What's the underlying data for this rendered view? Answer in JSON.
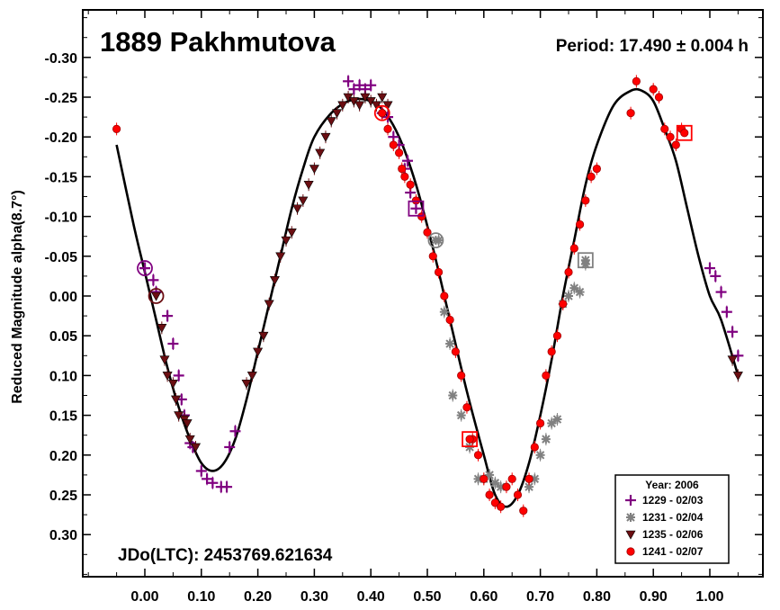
{
  "chart_data": {
    "type": "scatter",
    "title": "1889 Pakhmutova",
    "period_text": "Period: 17.490 ± 0.004 h",
    "jdo_text": "JDo(LTC): 2453769.621634",
    "xlabel": "",
    "ylabel": "Reduced Magnitude alpha(8.7°)",
    "xlim": [
      -0.11,
      1.11
    ],
    "ylim": [
      -0.36,
      0.36
    ],
    "y_inverted": true,
    "x_ticks": [
      "0.00",
      "0.10",
      "0.20",
      "0.30",
      "0.40",
      "0.50",
      "0.60",
      "0.70",
      "0.80",
      "0.90",
      "1.00"
    ],
    "y_ticks": [
      "-0.30",
      "-0.25",
      "-0.20",
      "-0.15",
      "-0.10",
      "-0.05",
      "0.00",
      "0.05",
      "0.10",
      "0.15",
      "0.20",
      "0.25",
      "0.30"
    ],
    "legend": {
      "title": "Year: 2006",
      "position": "bottom-right",
      "entries": [
        "1229 - 02/03",
        "1231 - 02/04",
        "1235 - 02/06",
        "1241 - 02/07"
      ]
    },
    "fit_curve": [
      [
        -0.05,
        -0.19
      ],
      [
        -0.02,
        -0.09
      ],
      [
        0.0,
        -0.03
      ],
      [
        0.02,
        0.03
      ],
      [
        0.04,
        0.09
      ],
      [
        0.06,
        0.14
      ],
      [
        0.08,
        0.18
      ],
      [
        0.1,
        0.21
      ],
      [
        0.12,
        0.22
      ],
      [
        0.14,
        0.21
      ],
      [
        0.16,
        0.18
      ],
      [
        0.18,
        0.13
      ],
      [
        0.2,
        0.07
      ],
      [
        0.22,
        0.01
      ],
      [
        0.24,
        -0.05
      ],
      [
        0.26,
        -0.11
      ],
      [
        0.28,
        -0.16
      ],
      [
        0.3,
        -0.2
      ],
      [
        0.33,
        -0.23
      ],
      [
        0.36,
        -0.245
      ],
      [
        0.39,
        -0.247
      ],
      [
        0.42,
        -0.235
      ],
      [
        0.45,
        -0.2
      ],
      [
        0.48,
        -0.14
      ],
      [
        0.51,
        -0.06
      ],
      [
        0.54,
        0.03
      ],
      [
        0.57,
        0.12
      ],
      [
        0.6,
        0.2
      ],
      [
        0.62,
        0.25
      ],
      [
        0.64,
        0.265
      ],
      [
        0.66,
        0.25
      ],
      [
        0.68,
        0.21
      ],
      [
        0.7,
        0.15
      ],
      [
        0.72,
        0.08
      ],
      [
        0.74,
        0.0
      ],
      [
        0.76,
        -0.07
      ],
      [
        0.78,
        -0.14
      ],
      [
        0.8,
        -0.19
      ],
      [
        0.83,
        -0.24
      ],
      [
        0.86,
        -0.258
      ],
      [
        0.88,
        -0.258
      ],
      [
        0.9,
        -0.245
      ],
      [
        0.92,
        -0.21
      ],
      [
        0.94,
        -0.17
      ],
      [
        0.96,
        -0.11
      ],
      [
        0.98,
        -0.05
      ],
      [
        1.0,
        0.0
      ],
      [
        1.02,
        0.03
      ],
      [
        1.05,
        0.1
      ]
    ],
    "series": [
      {
        "name": "1229 - 02/03",
        "color": "#800080",
        "marker": "plus",
        "points": [
          [
            0.0,
            -0.035
          ],
          [
            0.015,
            -0.02
          ],
          [
            0.02,
            -0.005
          ],
          [
            0.04,
            0.025
          ],
          [
            0.05,
            0.06
          ],
          [
            0.06,
            0.1
          ],
          [
            0.065,
            0.13
          ],
          [
            0.07,
            0.15
          ],
          [
            0.08,
            0.185
          ],
          [
            0.085,
            0.19
          ],
          [
            0.1,
            0.22
          ],
          [
            0.11,
            0.23
          ],
          [
            0.12,
            0.235
          ],
          [
            0.135,
            0.24
          ],
          [
            0.145,
            0.24
          ],
          [
            0.15,
            0.19
          ],
          [
            0.16,
            0.17
          ],
          [
            0.36,
            -0.27
          ],
          [
            0.37,
            -0.26
          ],
          [
            0.38,
            -0.265
          ],
          [
            0.39,
            -0.26
          ],
          [
            0.4,
            -0.265
          ],
          [
            0.42,
            -0.23
          ],
          [
            0.43,
            -0.225
          ],
          [
            0.44,
            -0.2
          ],
          [
            0.45,
            -0.19
          ],
          [
            0.46,
            -0.16
          ],
          [
            0.465,
            -0.17
          ],
          [
            0.47,
            -0.13
          ],
          [
            1.0,
            -0.035
          ],
          [
            1.01,
            -0.025
          ],
          [
            1.02,
            -0.005
          ],
          [
            1.03,
            0.02
          ],
          [
            1.04,
            0.045
          ],
          [
            1.05,
            0.075
          ]
        ]
      },
      {
        "name": "1231 - 02/04",
        "color": "#808080",
        "marker": "asterisk",
        "points": [
          [
            0.52,
            -0.07
          ],
          [
            0.53,
            0.02
          ],
          [
            0.54,
            0.06
          ],
          [
            0.545,
            0.125
          ],
          [
            0.56,
            0.15
          ],
          [
            0.575,
            0.19
          ],
          [
            0.59,
            0.23
          ],
          [
            0.6,
            0.23
          ],
          [
            0.61,
            0.225
          ],
          [
            0.62,
            0.235
          ],
          [
            0.63,
            0.24
          ],
          [
            0.68,
            0.24
          ],
          [
            0.69,
            0.23
          ],
          [
            0.7,
            0.2
          ],
          [
            0.71,
            0.18
          ],
          [
            0.72,
            0.16
          ],
          [
            0.73,
            0.155
          ],
          [
            0.74,
            0.01
          ],
          [
            0.75,
            0.0
          ],
          [
            0.76,
            -0.01
          ],
          [
            0.77,
            -0.005
          ],
          [
            0.78,
            -0.04
          ]
        ]
      },
      {
        "name": "1235 - 02/06",
        "color": "#6b0e12",
        "marker": "triangle",
        "points": [
          [
            0.03,
            0.04
          ],
          [
            0.035,
            0.08
          ],
          [
            0.04,
            0.1
          ],
          [
            0.05,
            0.11
          ],
          [
            0.055,
            0.13
          ],
          [
            0.06,
            0.15
          ],
          [
            0.07,
            0.155
          ],
          [
            0.075,
            0.16
          ],
          [
            0.08,
            0.18
          ],
          [
            0.09,
            0.19
          ],
          [
            0.18,
            0.11
          ],
          [
            0.19,
            0.1
          ],
          [
            0.2,
            0.07
          ],
          [
            0.21,
            0.05
          ],
          [
            0.22,
            0.01
          ],
          [
            0.23,
            -0.02
          ],
          [
            0.24,
            -0.05
          ],
          [
            0.25,
            -0.07
          ],
          [
            0.26,
            -0.08
          ],
          [
            0.27,
            -0.11
          ],
          [
            0.28,
            -0.12
          ],
          [
            0.29,
            -0.14
          ],
          [
            0.3,
            -0.16
          ],
          [
            0.31,
            -0.18
          ],
          [
            0.32,
            -0.2
          ],
          [
            0.33,
            -0.22
          ],
          [
            0.34,
            -0.23
          ],
          [
            0.35,
            -0.24
          ],
          [
            0.36,
            -0.25
          ],
          [
            0.37,
            -0.245
          ],
          [
            0.38,
            -0.24
          ],
          [
            0.39,
            -0.25
          ],
          [
            0.4,
            -0.245
          ],
          [
            0.41,
            -0.24
          ],
          [
            0.42,
            -0.25
          ],
          [
            0.43,
            -0.24
          ],
          [
            1.04,
            0.08
          ],
          [
            1.05,
            0.1
          ]
        ]
      },
      {
        "name": "1241 - 02/07",
        "color": "#ff0000",
        "marker": "circle",
        "points": [
          [
            -0.05,
            -0.21
          ],
          [
            0.42,
            -0.23
          ],
          [
            0.43,
            -0.21
          ],
          [
            0.44,
            -0.19
          ],
          [
            0.45,
            -0.18
          ],
          [
            0.455,
            -0.16
          ],
          [
            0.46,
            -0.15
          ],
          [
            0.47,
            -0.14
          ],
          [
            0.48,
            -0.12
          ],
          [
            0.49,
            -0.1
          ],
          [
            0.5,
            -0.08
          ],
          [
            0.51,
            -0.05
          ],
          [
            0.52,
            -0.03
          ],
          [
            0.53,
            0.0
          ],
          [
            0.54,
            0.03
          ],
          [
            0.55,
            0.07
          ],
          [
            0.56,
            0.1
          ],
          [
            0.57,
            0.14
          ],
          [
            0.58,
            0.18
          ],
          [
            0.59,
            0.2
          ],
          [
            0.6,
            0.23
          ],
          [
            0.61,
            0.25
          ],
          [
            0.62,
            0.26
          ],
          [
            0.63,
            0.265
          ],
          [
            0.64,
            0.24
          ],
          [
            0.65,
            0.23
          ],
          [
            0.66,
            0.25
          ],
          [
            0.67,
            0.27
          ],
          [
            0.68,
            0.23
          ],
          [
            0.69,
            0.19
          ],
          [
            0.7,
            0.16
          ],
          [
            0.71,
            0.1
          ],
          [
            0.72,
            0.07
          ],
          [
            0.73,
            0.05
          ],
          [
            0.74,
            0.01
          ],
          [
            0.75,
            -0.03
          ],
          [
            0.76,
            -0.06
          ],
          [
            0.77,
            -0.09
          ],
          [
            0.78,
            -0.12
          ],
          [
            0.79,
            -0.15
          ],
          [
            0.8,
            -0.16
          ],
          [
            0.86,
            -0.23
          ],
          [
            0.87,
            -0.27
          ],
          [
            0.9,
            -0.26
          ],
          [
            0.91,
            -0.25
          ],
          [
            0.92,
            -0.21
          ],
          [
            0.93,
            -0.2
          ],
          [
            0.94,
            -0.19
          ],
          [
            0.95,
            -0.21
          ]
        ]
      }
    ],
    "highlight_markers": [
      {
        "series": "1229 - 02/03",
        "shape": "circle-ring",
        "x": 0.0,
        "y": -0.035
      },
      {
        "series": "1235 - 02/06",
        "shape": "circle-ring",
        "x": 0.02,
        "y": 0.0
      },
      {
        "series": "1241 - 02/07",
        "shape": "circle-ring",
        "x": 0.42,
        "y": -0.23
      },
      {
        "series": "1229 - 02/03",
        "shape": "square-ring",
        "x": 0.48,
        "y": -0.11
      },
      {
        "series": "1231 - 02/04",
        "shape": "circle-ring",
        "x": 0.515,
        "y": -0.07
      },
      {
        "series": "1241 - 02/07",
        "shape": "square-ring",
        "x": 0.575,
        "y": 0.18
      },
      {
        "series": "1231 - 02/04",
        "shape": "square-ring",
        "x": 0.78,
        "y": -0.045
      },
      {
        "series": "1241 - 02/07",
        "shape": "square-ring",
        "x": 0.955,
        "y": -0.205
      }
    ]
  }
}
